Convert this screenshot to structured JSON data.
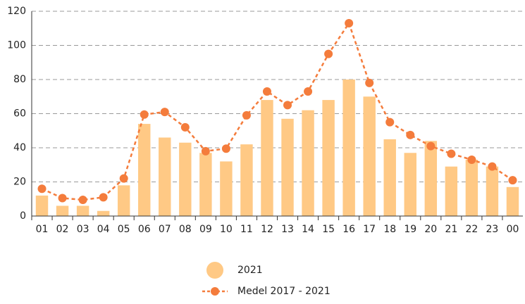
{
  "chart_data": {
    "type": "bar",
    "categories": [
      "01",
      "02",
      "03",
      "04",
      "05",
      "06",
      "07",
      "08",
      "09",
      "10",
      "11",
      "12",
      "13",
      "14",
      "15",
      "16",
      "17",
      "18",
      "19",
      "20",
      "21",
      "22",
      "23",
      "00"
    ],
    "series": [
      {
        "name": "2021",
        "type": "bar",
        "color": "#ffc985",
        "values": [
          12,
          6,
          6,
          3,
          18,
          54,
          46,
          43,
          37,
          32,
          42,
          68,
          57,
          62,
          68,
          80,
          70,
          45,
          37,
          44,
          29,
          33,
          29,
          17
        ]
      },
      {
        "name": "Medel 2017 - 2021",
        "type": "line",
        "color": "#f47c3c",
        "values": [
          16,
          10.5,
          9.5,
          11,
          22,
          59.5,
          61,
          52,
          38,
          39.5,
          59,
          73,
          65,
          73,
          95,
          113,
          78,
          55,
          47.5,
          41,
          36.5,
          33,
          29,
          21
        ]
      }
    ],
    "ylim": [
      0,
      120
    ],
    "yticks": [
      0,
      20,
      40,
      60,
      80,
      100,
      120
    ],
    "grid": true,
    "legend": "bottom"
  }
}
